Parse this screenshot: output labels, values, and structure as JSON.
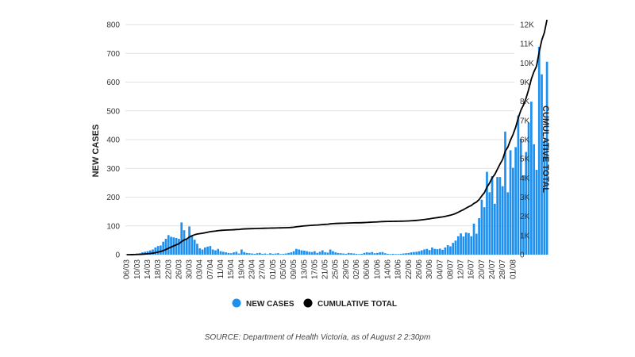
{
  "chart_data": {
    "type": "bar",
    "ylabel": "NEW CASES",
    "y2label": "CUMULATIVE TOTAL",
    "ylim": [
      0,
      800
    ],
    "yticks": [
      0,
      100,
      200,
      300,
      400,
      500,
      600,
      700,
      800
    ],
    "y2lim": [
      0,
      12000
    ],
    "y2ticks": [
      "0",
      "1K",
      "2K",
      "3K",
      "4K",
      "5K",
      "6K",
      "7K",
      "8K",
      "9K",
      "10K",
      "11K",
      "12K"
    ],
    "x_start": "06/03",
    "x_end": "01/08",
    "xticks": [
      "06/03",
      "10/03",
      "14/03",
      "18/03",
      "22/03",
      "26/03",
      "30/03",
      "03/04",
      "07/04",
      "11/04",
      "15/04",
      "19/04",
      "23/04",
      "27/04",
      "01/05",
      "05/05",
      "09/05",
      "13/05",
      "17/05",
      "21/05",
      "25/05",
      "29/05",
      "02/06",
      "06/06",
      "10/06",
      "14/06",
      "18/06",
      "22/06",
      "26/06",
      "30/06",
      "04/07",
      "08/07",
      "12/07",
      "16/07",
      "20/07",
      "24/07",
      "28/07",
      "01/08"
    ],
    "grid": true,
    "legend_position": "bottom",
    "series": [
      {
        "name": "NEW CASES",
        "type": "bar",
        "color": "#1e90ef",
        "values": [
          1,
          0,
          2,
          3,
          4,
          5,
          8,
          10,
          12,
          15,
          18,
          25,
          30,
          32,
          45,
          55,
          68,
          62,
          60,
          58,
          55,
          112,
          85,
          55,
          98,
          68,
          52,
          38,
          22,
          18,
          25,
          28,
          30,
          18,
          15,
          20,
          12,
          10,
          8,
          6,
          5,
          8,
          10,
          4,
          18,
          9,
          6,
          5,
          4,
          3,
          5,
          6,
          3,
          4,
          2,
          5,
          3,
          4,
          5,
          2,
          3,
          4,
          6,
          8,
          12,
          20,
          18,
          15,
          14,
          12,
          10,
          9,
          12,
          6,
          10,
          15,
          8,
          7,
          18,
          12,
          8,
          6,
          5,
          4,
          3,
          6,
          5,
          4,
          3,
          2,
          3,
          6,
          8,
          7,
          9,
          5,
          6,
          8,
          9,
          5,
          3,
          2,
          3,
          2,
          2,
          3,
          4,
          5,
          6,
          8,
          9,
          10,
          12,
          15,
          18,
          20,
          16,
          25,
          20,
          19,
          21,
          17,
          25,
          33,
          29,
          41,
          49,
          64,
          74,
          63,
          77,
          75,
          64,
          108,
          73,
          127,
          191,
          165,
          288,
          217,
          273,
          177,
          270,
          270,
          238,
          428,
          217,
          363,
          302,
          374,
          484,
          403,
          276,
          357,
          459,
          532,
          384,
          295,
          723,
          627,
          397,
          671
        ]
      },
      {
        "name": "CUMULATIVE TOTAL",
        "type": "line",
        "color": "#000000"
      }
    ]
  },
  "legend": [
    {
      "label": "NEW CASES",
      "color": "#1e90ef"
    },
    {
      "label": "CUMULATIVE TOTAL",
      "color": "#000000"
    }
  ],
  "source": "SOURCE: Department of Health Victoria, as of August 2 2:30pm"
}
